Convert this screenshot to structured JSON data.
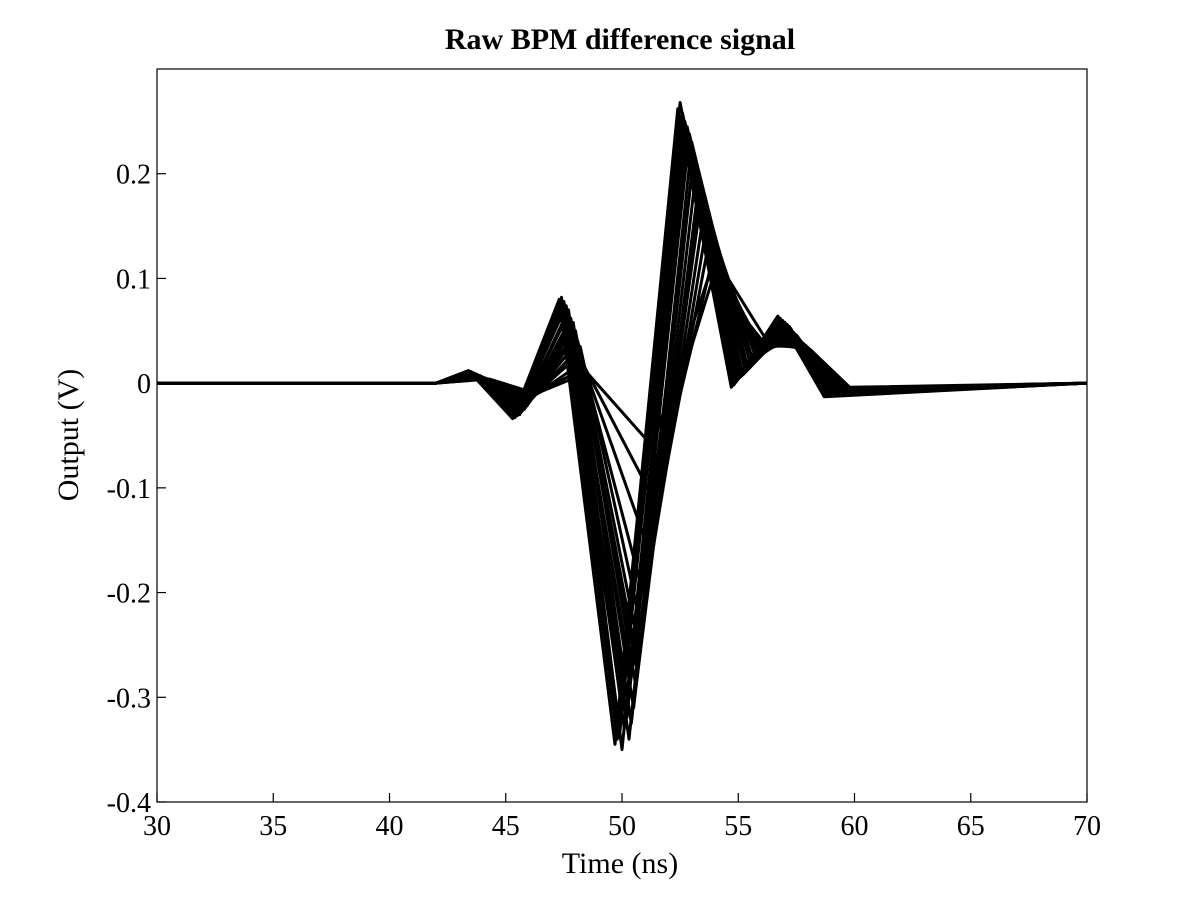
{
  "chart_data": {
    "type": "line",
    "title": "Raw BPM difference signal",
    "xlabel": "Time (ns)",
    "ylabel": "Output (V)",
    "xlim": [
      30,
      70
    ],
    "ylim": [
      -0.4,
      0.3
    ],
    "xticks": [
      30,
      35,
      40,
      45,
      50,
      55,
      60,
      65,
      70
    ],
    "yticks": [
      -0.4,
      -0.3,
      -0.2,
      -0.1,
      0,
      0.1,
      0.2
    ],
    "ytick_labels": [
      "-0.4",
      "-0.3",
      "-0.2",
      "-0.1",
      "0",
      "0.1",
      "0.2"
    ],
    "grid": false,
    "legend": "none",
    "line_color": "#000000",
    "series": [
      {
        "x": [
          30,
          42,
          43.4,
          45.4,
          47.4,
          49.8,
          52.5,
          54.8,
          56.8,
          58.8,
          70
        ],
        "y": [
          0,
          0,
          0.012,
          -0.032,
          0.082,
          -0.34,
          0.268,
          -0.002,
          0.062,
          -0.012,
          0
        ]
      },
      {
        "x": [
          30,
          42,
          43.5,
          45.5,
          47.5,
          49.9,
          52.6,
          54.9,
          56.9,
          58.9,
          70
        ],
        "y": [
          0,
          0,
          0.011,
          -0.031,
          0.078,
          -0.335,
          0.258,
          0.001,
          0.06,
          -0.011,
          0
        ]
      },
      {
        "x": [
          30,
          42,
          43.5,
          45.5,
          47.6,
          50.0,
          52.7,
          55.0,
          57.0,
          59.0,
          70
        ],
        "y": [
          0,
          0,
          0.01,
          -0.029,
          0.074,
          -0.35,
          0.25,
          0.004,
          0.058,
          -0.01,
          0
        ]
      },
      {
        "x": [
          30,
          42,
          43.6,
          45.6,
          47.7,
          50.1,
          52.8,
          55.1,
          57.1,
          59.1,
          70
        ],
        "y": [
          0,
          0,
          0.01,
          -0.03,
          0.07,
          -0.33,
          0.245,
          0.006,
          0.056,
          -0.01,
          0
        ]
      },
      {
        "x": [
          30,
          42,
          43.6,
          45.6,
          47.7,
          50.2,
          52.9,
          55.2,
          57.2,
          59.1,
          70
        ],
        "y": [
          0,
          0,
          0.009,
          -0.028,
          0.066,
          -0.32,
          0.238,
          0.008,
          0.054,
          -0.01,
          0
        ]
      },
      {
        "x": [
          30,
          42,
          43.7,
          45.7,
          47.8,
          50.3,
          53.0,
          55.3,
          57.2,
          59.2,
          70
        ],
        "y": [
          0,
          0,
          0.009,
          -0.027,
          0.062,
          -0.34,
          0.23,
          0.012,
          0.052,
          -0.009,
          0
        ]
      },
      {
        "x": [
          30,
          42,
          43.7,
          45.7,
          47.9,
          50.4,
          53.1,
          55.4,
          57.3,
          59.2,
          70
        ],
        "y": [
          0,
          0,
          0.008,
          -0.026,
          0.058,
          -0.325,
          0.22,
          0.016,
          0.05,
          -0.009,
          0
        ]
      },
      {
        "x": [
          30,
          42,
          43.8,
          45.8,
          47.9,
          50.5,
          53.2,
          55.5,
          57.4,
          59.3,
          70
        ],
        "y": [
          0,
          0,
          0.008,
          -0.025,
          0.054,
          -0.31,
          0.205,
          0.02,
          0.048,
          -0.008,
          0
        ]
      },
      {
        "x": [
          30,
          42,
          43.8,
          45.8,
          48.0,
          50.6,
          53.3,
          55.6,
          57.5,
          59.3,
          70
        ],
        "y": [
          0,
          0,
          0.007,
          -0.024,
          0.05,
          -0.29,
          0.19,
          0.024,
          0.046,
          -0.008,
          0
        ]
      },
      {
        "x": [
          30,
          42,
          43.9,
          45.9,
          48.0,
          50.6,
          53.4,
          55.7,
          57.5,
          59.4,
          70
        ],
        "y": [
          0,
          0,
          0.007,
          -0.022,
          0.045,
          -0.27,
          0.175,
          0.028,
          0.044,
          -0.007,
          0
        ]
      },
      {
        "x": [
          30,
          42,
          43.9,
          45.9,
          48.1,
          50.7,
          53.5,
          55.8,
          57.6,
          59.4,
          70
        ],
        "y": [
          0,
          0,
          0.006,
          -0.02,
          0.04,
          -0.25,
          0.16,
          0.03,
          0.042,
          -0.007,
          0
        ]
      },
      {
        "x": [
          30,
          42,
          44.0,
          46.0,
          48.2,
          50.8,
          53.6,
          55.9,
          57.7,
          59.5,
          70
        ],
        "y": [
          0,
          0,
          0.006,
          -0.018,
          0.035,
          -0.23,
          0.145,
          0.032,
          0.04,
          -0.006,
          0
        ]
      },
      {
        "x": [
          30,
          42,
          44.0,
          46.0,
          48.2,
          50.9,
          53.7,
          56.0,
          57.8,
          59.5,
          70
        ],
        "y": [
          0,
          0,
          0.005,
          -0.016,
          0.028,
          -0.2,
          0.13,
          0.034,
          0.038,
          -0.006,
          0
        ]
      },
      {
        "x": [
          30,
          42,
          44.1,
          46.1,
          48.3,
          51.0,
          53.8,
          56.1,
          57.9,
          59.6,
          70
        ],
        "y": [
          0,
          0,
          0.005,
          -0.014,
          0.02,
          -0.15,
          0.11,
          0.035,
          0.036,
          -0.005,
          0
        ]
      },
      {
        "x": [
          30,
          42,
          43.4,
          45.3,
          47.3,
          49.7,
          52.4,
          54.7,
          56.7,
          58.7,
          70
        ],
        "y": [
          0,
          0,
          0.012,
          -0.034,
          0.08,
          -0.345,
          0.262,
          -0.004,
          0.064,
          -0.013,
          0
        ]
      },
      {
        "x": [
          30,
          42,
          43.5,
          45.4,
          47.4,
          49.8,
          52.5,
          54.8,
          56.8,
          58.8,
          70
        ],
        "y": [
          0,
          0,
          0.011,
          -0.033,
          0.076,
          -0.33,
          0.255,
          0.0,
          0.061,
          -0.012,
          0
        ]
      },
      {
        "x": [
          30,
          42,
          43.6,
          45.5,
          47.5,
          50.0,
          52.6,
          54.9,
          56.9,
          58.9,
          70
        ],
        "y": [
          0,
          0,
          0.01,
          -0.03,
          0.072,
          -0.31,
          0.24,
          0.004,
          0.058,
          -0.011,
          0
        ]
      },
      {
        "x": [
          30,
          42,
          43.7,
          45.6,
          47.6,
          50.2,
          52.8,
          55.1,
          57.0,
          59.0,
          70
        ],
        "y": [
          0,
          0,
          0.009,
          -0.028,
          0.064,
          -0.3,
          0.225,
          0.01,
          0.055,
          -0.01,
          0
        ]
      },
      {
        "x": [
          30,
          42,
          43.8,
          45.7,
          47.8,
          50.4,
          53.0,
          55.3,
          57.2,
          59.1,
          70
        ],
        "y": [
          0,
          0,
          0.008,
          -0.026,
          0.056,
          -0.28,
          0.2,
          0.016,
          0.05,
          -0.009,
          0
        ]
      },
      {
        "x": [
          30,
          42,
          43.9,
          45.8,
          48.0,
          50.6,
          53.3,
          55.6,
          57.4,
          59.3,
          70
        ],
        "y": [
          0,
          0,
          0.007,
          -0.022,
          0.044,
          -0.26,
          0.17,
          0.024,
          0.045,
          -0.008,
          0
        ]
      },
      {
        "x": [
          30,
          42,
          44.2,
          46.2,
          48.4,
          51.1,
          53.9,
          56.2,
          58.0,
          59.7,
          70
        ],
        "y": [
          0,
          0,
          0.004,
          -0.012,
          0.015,
          -0.1,
          0.1,
          0.036,
          0.034,
          -0.005,
          0
        ]
      },
      {
        "x": [
          30,
          42,
          44.3,
          46.3,
          48.5,
          51.3,
          54.0,
          56.3,
          58.1,
          59.8,
          70
        ],
        "y": [
          0,
          0,
          0.004,
          -0.01,
          0.01,
          -0.06,
          0.12,
          0.038,
          0.032,
          -0.004,
          0
        ]
      }
    ]
  }
}
